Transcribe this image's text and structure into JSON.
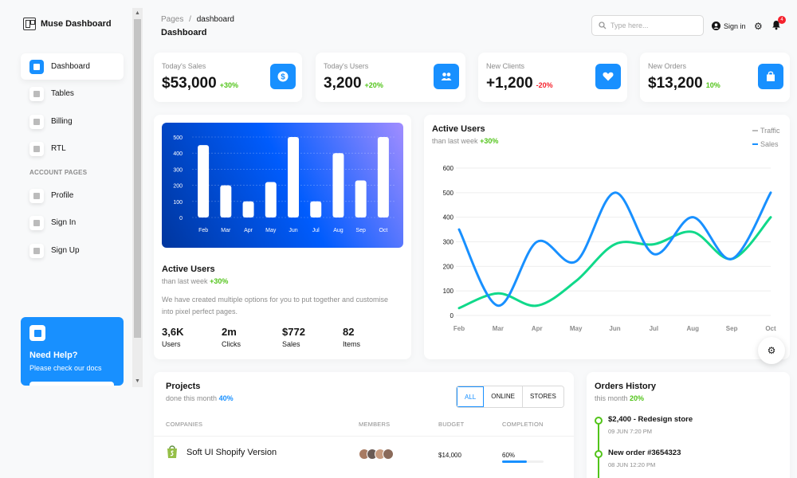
{
  "app": {
    "name": "Muse Dashboard"
  },
  "sidebar": {
    "items": [
      {
        "label": "Dashboard",
        "icon": "dashboard-icon"
      },
      {
        "label": "Tables",
        "icon": "table-icon"
      },
      {
        "label": "Billing",
        "icon": "billing-icon"
      },
      {
        "label": "RTL",
        "icon": "flag-icon"
      }
    ],
    "section_label": "ACCOUNT PAGES",
    "account_items": [
      {
        "label": "Profile",
        "icon": "profile-icon"
      },
      {
        "label": "Sign In",
        "icon": "signin-icon"
      },
      {
        "label": "Sign Up",
        "icon": "signup-icon"
      }
    ],
    "help": {
      "title": "Need Help?",
      "subtitle": "Please check our docs"
    }
  },
  "header": {
    "breadcrumb_parent": "Pages",
    "breadcrumb_sep": "/",
    "breadcrumb_current": "dashboard",
    "title": "Dashboard",
    "search_placeholder": "Type here...",
    "signin_label": "Sign in",
    "notification_count": "4"
  },
  "stats": [
    {
      "label": "Today's Sales",
      "value": "$53,000",
      "change": "+30%",
      "change_color": "#52c41a",
      "icon": "dollar-icon"
    },
    {
      "label": "Today's Users",
      "value": "3,200",
      "change": "+20%",
      "change_color": "#52c41a",
      "icon": "users-icon"
    },
    {
      "label": "New Clients",
      "value": "+1,200",
      "change": "-20%",
      "change_color": "#f5222d",
      "icon": "heart-icon"
    },
    {
      "label": "New Orders",
      "value": "$13,200",
      "change": "10%",
      "change_color": "#52c41a",
      "icon": "bag-icon"
    }
  ],
  "active_users_card": {
    "title": "Active Users",
    "subtitle_prefix": "than last week",
    "subtitle_change": "+30%",
    "description": "We have created multiple options for you to put together and customise into pixel perfect pages.",
    "mini_stats": [
      {
        "value": "3,6K",
        "label": "Users"
      },
      {
        "value": "2m",
        "label": "Clicks"
      },
      {
        "value": "$772",
        "label": "Sales"
      },
      {
        "value": "82",
        "label": "Items"
      }
    ]
  },
  "line_card": {
    "title": "Active Users",
    "subtitle_prefix": "than last week",
    "subtitle_change": "+30%"
  },
  "projects": {
    "title": "Projects",
    "subtitle_prefix": "done this month",
    "subtitle_change": "40%",
    "filters": [
      "ALL",
      "ONLINE",
      "STORES"
    ],
    "active_filter": "ALL",
    "columns": [
      "COMPANIES",
      "MEMBERS",
      "BUDGET",
      "COMPLETION"
    ],
    "rows": [
      {
        "company": "Soft UI Shopify Version",
        "budget": "$14,000",
        "completion": "60%",
        "completion_value": 0.6
      }
    ]
  },
  "orders": {
    "title": "Orders History",
    "subtitle_prefix": "this month",
    "subtitle_change": "20%",
    "items": [
      {
        "title": "$2,400 - Redesign store",
        "date": "09 JUN 7:20 PM"
      },
      {
        "title": "New order #3654323",
        "date": "08 JUN 12:20 PM"
      }
    ]
  },
  "colors": {
    "accent": "#1890ff",
    "positive": "#52c41a",
    "negative": "#f5222d"
  },
  "chart_data": [
    {
      "type": "bar",
      "categories": [
        "Feb",
        "Mar",
        "Apr",
        "May",
        "Jun",
        "Jul",
        "Aug",
        "Sep",
        "Oct"
      ],
      "values": [
        450,
        200,
        100,
        220,
        500,
        100,
        400,
        230,
        500
      ],
      "ylim": [
        0,
        500
      ],
      "yticks": [
        0,
        100,
        200,
        300,
        400,
        500
      ]
    },
    {
      "type": "line",
      "categories": [
        "Feb",
        "Mar",
        "Apr",
        "May",
        "Jun",
        "Jul",
        "Aug",
        "Sep",
        "Oct"
      ],
      "series": [
        {
          "name": "Traffic",
          "color": "#10d98a",
          "values": [
            30,
            90,
            40,
            140,
            290,
            290,
            340,
            230,
            400
          ]
        },
        {
          "name": "Sales",
          "color": "#1890ff",
          "values": [
            350,
            40,
            300,
            220,
            500,
            250,
            400,
            230,
            500
          ]
        }
      ],
      "ylim": [
        0,
        600
      ],
      "yticks": [
        0,
        100,
        200,
        300,
        400,
        500,
        600
      ],
      "legend_position": "top-right"
    }
  ]
}
